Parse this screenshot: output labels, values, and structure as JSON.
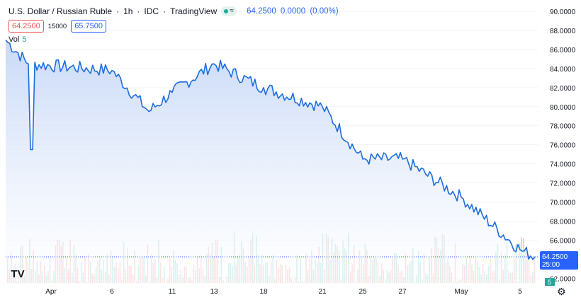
{
  "header": {
    "symbol": "U.S. Dollar / Russian Ruble",
    "interval": "1h",
    "exchange": "IDC",
    "source": "TradingView",
    "sep": "·",
    "quote_price": "64.2500",
    "quote_change": "0.0000",
    "quote_pct": "(0.00%)",
    "toggle_icon": "≈"
  },
  "order": {
    "sell": "64.2500",
    "spread": "15000",
    "buy": "65.7500"
  },
  "volume_legend": {
    "label": "Vol",
    "value": "5"
  },
  "price_badge": {
    "price": "64.2500",
    "countdown": "25:00"
  },
  "volume_badge": "5",
  "logo_text": "TV",
  "colors": {
    "line": "#1e6ddb",
    "fill_top": "#c5d7f7",
    "up": "#26a69a",
    "down": "#ef5350",
    "axis_text": "#131722",
    "grid": "#f0f3fa"
  },
  "chart_data": {
    "type": "area",
    "y_axis_side": "right",
    "ylim": [
      61.5,
      90.6
    ],
    "y_ticks": [
      "90.0000",
      "88.0000",
      "86.0000",
      "84.0000",
      "82.0000",
      "80.0000",
      "78.0000",
      "76.0000",
      "74.0000",
      "72.0000",
      "70.0000",
      "68.0000",
      "66.0000",
      "62.0000"
    ],
    "x_ticks": [
      "Apr",
      "6",
      "11",
      "13",
      "18",
      "21",
      "25",
      "27",
      "May",
      "5"
    ],
    "price_series": {
      "x": [
        "Mar 30",
        "Apr 1",
        "Apr 6",
        "Apr 8",
        "Apr 11",
        "Apr 13",
        "Apr 18",
        "Apr 21",
        "Apr 25",
        "Apr 27",
        "May 1",
        "May 5",
        "May 6"
      ],
      "y": [
        87.0,
        84.5,
        83.8,
        79.5,
        81.5,
        84.5,
        82.0,
        80.0,
        74.5,
        74.5,
        70.5,
        65.0,
        64.25
      ]
    },
    "current_price": 64.25,
    "volume_last": 5
  }
}
